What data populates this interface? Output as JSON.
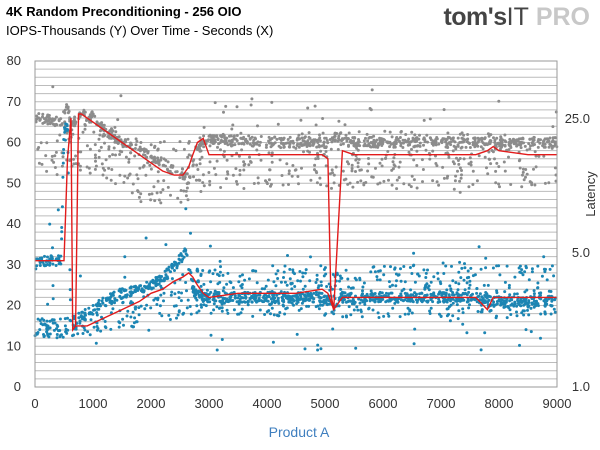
{
  "header": {
    "title": "4K Random Preconditioning - 256 OIO",
    "subtitle": "IOPS-Thousands (Y) Over Time - Seconds (X)"
  },
  "logo": {
    "brand": "tom's",
    "product": "IT",
    "accent": "PRO"
  },
  "chart_data": {
    "type": "scatter",
    "title": "4K Random Preconditioning - 256 OIO",
    "subtitle": "IOPS-Thousands (Y) Over Time - Seconds (X)",
    "xlabel": "Product A",
    "ylabel": "",
    "y2label": "Latency",
    "xlim": [
      0,
      9000
    ],
    "ylim": [
      0,
      80
    ],
    "y2lim": [
      1.0,
      50.0
    ],
    "y2_scale": "log",
    "x_ticks": [
      "0",
      "1000",
      "2000",
      "3000",
      "4000",
      "5000",
      "6000",
      "7000",
      "8000",
      "9000"
    ],
    "y_ticks": [
      "0",
      "10",
      "20",
      "30",
      "40",
      "50",
      "60",
      "70",
      "80"
    ],
    "y2_ticks": [
      "1.0",
      "5.0",
      "25.0"
    ],
    "grid": true,
    "colors": {
      "iops": "#1c85b3",
      "latency": "#8c8c8c",
      "trend": "#e21b1b"
    },
    "series": [
      {
        "role": "iops",
        "axis": "left",
        "profile": [
          [
            0,
            31
          ],
          [
            450,
            31
          ],
          [
            500,
            63
          ],
          [
            560,
            64
          ],
          [
            620,
            13
          ],
          [
            700,
            15
          ],
          [
            800,
            17
          ],
          [
            1000,
            19
          ],
          [
            1200,
            21
          ],
          [
            1500,
            23
          ],
          [
            2000,
            25
          ],
          [
            2300,
            28
          ],
          [
            2600,
            33
          ],
          [
            2750,
            23
          ],
          [
            3000,
            22
          ],
          [
            4000,
            22
          ],
          [
            5000,
            22
          ],
          [
            5150,
            19
          ],
          [
            5300,
            22
          ],
          [
            7600,
            22
          ],
          [
            7900,
            21
          ],
          [
            9000,
            21
          ]
        ],
        "lower_cloud": [
          [
            600,
            12
          ],
          [
            1500,
            14
          ],
          [
            2800,
            18
          ],
          [
            5000,
            17
          ],
          [
            9000,
            17
          ]
        ],
        "upper_cloud": [
          [
            600,
            17
          ],
          [
            1500,
            24
          ],
          [
            2800,
            29
          ],
          [
            3000,
            30
          ],
          [
            9000,
            30
          ]
        ]
      },
      {
        "role": "latency",
        "axis": "right",
        "profile": [
          [
            0,
            66
          ],
          [
            450,
            65
          ],
          [
            500,
            67
          ],
          [
            550,
            70
          ],
          [
            620,
            64
          ],
          [
            800,
            67
          ],
          [
            1000,
            66
          ],
          [
            1200,
            63
          ],
          [
            1500,
            60
          ],
          [
            1800,
            58
          ],
          [
            2200,
            55
          ],
          [
            2500,
            52
          ],
          [
            2650,
            51
          ],
          [
            2700,
            54
          ],
          [
            2850,
            59
          ],
          [
            3000,
            61
          ],
          [
            4000,
            60
          ],
          [
            5100,
            60
          ],
          [
            5200,
            62
          ],
          [
            5400,
            60
          ],
          [
            9000,
            60
          ]
        ],
        "lower_cloud": [
          [
            1000,
            52
          ],
          [
            2000,
            45
          ],
          [
            2600,
            45
          ],
          [
            2900,
            48
          ],
          [
            4000,
            49
          ],
          [
            9000,
            49
          ]
        ],
        "upper_cloud": [
          [
            1000,
            66
          ],
          [
            2000,
            60
          ],
          [
            2900,
            62
          ],
          [
            5200,
            63
          ],
          [
            9000,
            62
          ]
        ]
      },
      {
        "role": "trend",
        "axis": "left",
        "x": [
          0,
          450,
          500,
          560,
          620,
          650,
          700,
          750,
          800,
          900,
          1000,
          1200,
          1500,
          1800,
          2000,
          2200,
          2400,
          2550,
          2650,
          2720,
          2800,
          2900,
          3000,
          3500,
          4000,
          4500,
          4950,
          5050,
          5100,
          5150,
          5300,
          5500,
          6000,
          7000,
          7600,
          7800,
          7900,
          8000,
          8500,
          9000
        ],
        "y": [
          31,
          31,
          31,
          56,
          66,
          14,
          15,
          67,
          67,
          66,
          65,
          63,
          60,
          57,
          55,
          53,
          52,
          52,
          54,
          57,
          60,
          61,
          57,
          57,
          57,
          57,
          57,
          56,
          23,
          19,
          58,
          57,
          57,
          57,
          57,
          58,
          59,
          58,
          57,
          57
        ]
      },
      {
        "role": "trend",
        "axis": "left",
        "x": [
          700,
          900,
          1200,
          1500,
          1800,
          2000,
          2200,
          2400,
          2550,
          2650,
          2720,
          2800,
          2900,
          3000,
          3500,
          4000,
          4500,
          4950,
          5050,
          5150,
          5300,
          5500,
          6000,
          7000,
          7600,
          7800,
          7900,
          8000,
          8500,
          9000
        ],
        "y": [
          15,
          15,
          17,
          19,
          21,
          23,
          24,
          26,
          27,
          28,
          27,
          25,
          23,
          22,
          23,
          23,
          23,
          24,
          23,
          19,
          22,
          22,
          22,
          22,
          22,
          19,
          22,
          22,
          22,
          22
        ]
      }
    ]
  }
}
